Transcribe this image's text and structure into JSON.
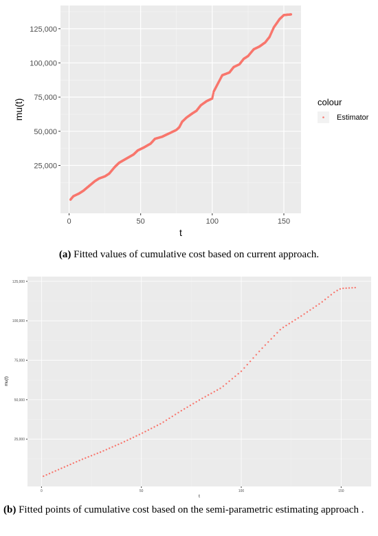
{
  "figure_a": {
    "caption_label": "(a)",
    "caption_text": " Fitted values of cumulative cost based on current approach.",
    "chart_data": {
      "type": "scatter",
      "xlabel": "t",
      "ylabel": "mu(t)",
      "xlim": [
        -6,
        162
      ],
      "ylim": [
        -10000,
        142000
      ],
      "x_ticks": [
        0,
        50,
        100,
        150
      ],
      "x_tick_labels": [
        "0",
        "50",
        "100",
        "150"
      ],
      "y_ticks": [
        25000,
        50000,
        75000,
        100000,
        125000
      ],
      "y_tick_labels": [
        "25,000",
        "50,000",
        "75,000",
        "100,000",
        "125,000"
      ],
      "grid": true,
      "legend": {
        "position": "right",
        "title": "colour",
        "entries": [
          "Estimator"
        ]
      },
      "series": [
        {
          "name": "Estimator",
          "color": "#f8766d",
          "anchors": [
            [
              1,
              0
            ],
            [
              3,
              2500
            ],
            [
              7,
              4500
            ],
            [
              10,
              6500
            ],
            [
              14,
              10000
            ],
            [
              18,
              13500
            ],
            [
              21,
              15500
            ],
            [
              25,
              17000
            ],
            [
              28,
              19000
            ],
            [
              32,
              24000
            ],
            [
              35,
              27000
            ],
            [
              40,
              30000
            ],
            [
              45,
              33000
            ],
            [
              48,
              36000
            ],
            [
              52,
              38000
            ],
            [
              57,
              41000
            ],
            [
              60,
              44500
            ],
            [
              65,
              46000
            ],
            [
              70,
              48500
            ],
            [
              75,
              51000
            ],
            [
              77,
              53000
            ],
            [
              79,
              57000
            ],
            [
              82,
              60000
            ],
            [
              86,
              63000
            ],
            [
              89,
              65000
            ],
            [
              92,
              69000
            ],
            [
              96,
              72000
            ],
            [
              100,
              74000
            ],
            [
              101,
              79000
            ],
            [
              104,
              85000
            ],
            [
              107,
              91000
            ],
            [
              112,
              93000
            ],
            [
              115,
              97000
            ],
            [
              119,
              99000
            ],
            [
              122,
              103000
            ],
            [
              125,
              105000
            ],
            [
              129,
              110000
            ],
            [
              133,
              112000
            ],
            [
              137,
              115000
            ],
            [
              140,
              119000
            ],
            [
              143,
              126000
            ],
            [
              147,
              132000
            ],
            [
              150,
              135000
            ],
            [
              155,
              135500
            ]
          ]
        }
      ]
    }
  },
  "figure_b": {
    "caption_label": "(b)",
    "caption_text": " Fitted points of cumulative cost based on the semi-parametric estimating approach .",
    "chart_data": {
      "type": "scatter",
      "xlabel": "t",
      "ylabel": "mu(t)",
      "xlim": [
        -7,
        165
      ],
      "ylim": [
        -5000,
        128000
      ],
      "x_ticks": [
        0,
        50,
        100,
        150
      ],
      "x_tick_labels": [
        "0",
        "50",
        "100",
        "150"
      ],
      "y_ticks": [
        25000,
        50000,
        75000,
        100000,
        125000
      ],
      "y_tick_labels": [
        "25,000",
        "50,000",
        "75,000",
        "100,000",
        "125,000"
      ],
      "grid": true,
      "series": [
        {
          "name": "",
          "color": "#f8766d",
          "anchors": [
            [
              1,
              1500
            ],
            [
              10,
              6500
            ],
            [
              20,
              12000
            ],
            [
              30,
              17000
            ],
            [
              40,
              22500
            ],
            [
              50,
              28500
            ],
            [
              60,
              35000
            ],
            [
              70,
              43000
            ],
            [
              80,
              50500
            ],
            [
              90,
              57500
            ],
            [
              100,
              68000
            ],
            [
              105,
              75000
            ],
            [
              110,
              82000
            ],
            [
              120,
              95000
            ],
            [
              130,
              103000
            ],
            [
              140,
              111500
            ],
            [
              147,
              118500
            ],
            [
              150,
              120500
            ],
            [
              157,
              121000
            ]
          ]
        }
      ]
    }
  }
}
